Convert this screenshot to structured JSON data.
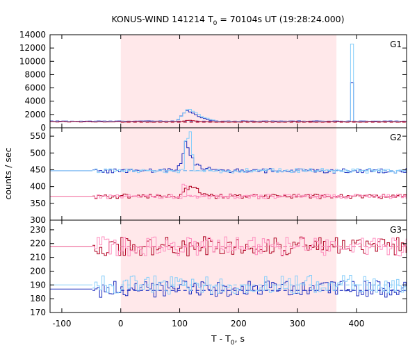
{
  "chart_data": {
    "type": "line",
    "title_main": "KONUS-WIND 141214 T",
    "title_sub": "0",
    "title_tail": " = 70104s UT (19:28:24.000)",
    "xlabel_main": "T - T",
    "xlabel_sub": "0",
    "xlabel_tail": ", s",
    "ylabel": "counts / sec",
    "xlim": [
      -120,
      485
    ],
    "xticks": [
      -100,
      0,
      100,
      200,
      300,
      400
    ],
    "highlight_interval": [
      0,
      366
    ],
    "panels": [
      {
        "label": "G1",
        "ylim": [
          0,
          14000
        ],
        "yticks": [
          0,
          2000,
          4000,
          6000,
          8000,
          10000,
          12000,
          14000
        ],
        "background": 1000,
        "series": [
          {
            "color": "#1f2fbf",
            "background": 1000,
            "dashed_level": 1000,
            "burst": [
              [
                95,
                1000
              ],
              [
                105,
                2000
              ],
              [
                112,
                2600
              ],
              [
                120,
                2300
              ],
              [
                130,
                1800
              ],
              [
                145,
                1300
              ],
              [
                160,
                1050
              ]
            ],
            "spike": {
              "x": 392,
              "y": 6800
            }
          },
          {
            "color": "#87cefa",
            "background": 950,
            "dashed_level": 950,
            "burst": [
              [
                95,
                1000
              ],
              [
                108,
                2300
              ],
              [
                115,
                2900
              ],
              [
                125,
                2400
              ],
              [
                140,
                1600
              ],
              [
                160,
                1100
              ]
            ],
            "spike": {
              "x": 390,
              "y": 12600
            }
          },
          {
            "color": "#b00020",
            "background": 900,
            "dashed_level": 850,
            "burst": [
              [
                100,
                900
              ],
              [
                115,
                1100
              ],
              [
                130,
                1000
              ]
            ]
          }
        ]
      },
      {
        "label": "G2",
        "ylim": [
          300,
          575
        ],
        "yticks": [
          300,
          350,
          400,
          450,
          500,
          550
        ],
        "series": [
          {
            "color": "#1f2fbf",
            "background": 447,
            "dashed_level": 447,
            "burst": [
              [
                98,
                460
              ],
              [
                103,
                470
              ],
              [
                108,
                520
              ],
              [
                112,
                540
              ],
              [
                116,
                500
              ],
              [
                120,
                495
              ],
              [
                125,
                470
              ],
              [
                135,
                460
              ],
              [
                150,
                455
              ]
            ]
          },
          {
            "color": "#87cefa",
            "background": 447,
            "dashed_level": 447,
            "burst": [
              [
                110,
                540
              ],
              [
                118,
                560
              ],
              [
                122,
                490
              ]
            ]
          },
          {
            "color": "#b00020",
            "background": 371,
            "dashed_level": 371,
            "burst": [
              [
                100,
                380
              ],
              [
                105,
                385
              ],
              [
                110,
                400
              ],
              [
                116,
                395
              ],
              [
                125,
                392
              ],
              [
                135,
                385
              ],
              [
                145,
                378
              ]
            ]
          },
          {
            "color": "#ff8fbf",
            "background": 371,
            "dashed_level": 371,
            "burst": [
              [
                105,
                410
              ],
              [
                112,
                398
              ]
            ]
          }
        ]
      },
      {
        "label": "G3",
        "ylim": [
          170,
          237
        ],
        "yticks": [
          170,
          180,
          190,
          200,
          210,
          220,
          230
        ],
        "series": [
          {
            "color": "#b00020",
            "background": 218,
            "dashed_level": 218
          },
          {
            "color": "#ff8fbf",
            "background": 218,
            "dashed_level": 218
          },
          {
            "color": "#1f2fbf",
            "background": 187,
            "dashed_level": 186
          },
          {
            "color": "#87cefa",
            "background": 190,
            "dashed_level": 190
          }
        ]
      }
    ]
  }
}
